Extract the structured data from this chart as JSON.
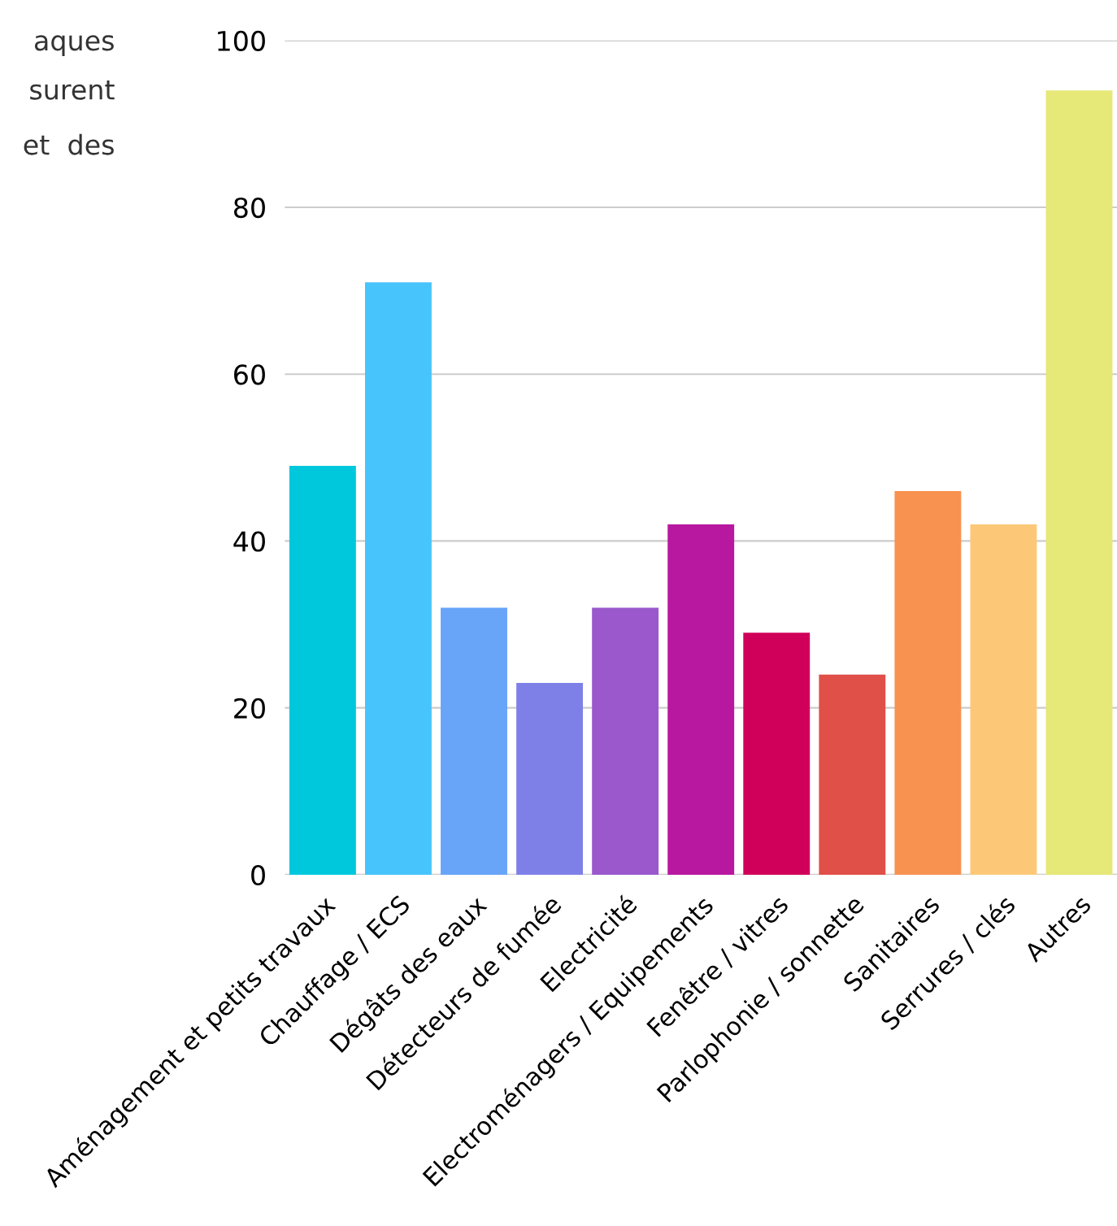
{
  "chart_data": {
    "type": "bar",
    "categories": [
      "Aménagement et petits travaux",
      "Chauffage / ECS",
      "Dégâts des eaux",
      "Détecteurs de fumée",
      "Electricité",
      "Electroménagers / Equipements",
      "Fenêtre / vitres",
      "Parlophonie / sonnette",
      "Sanitaires",
      "Serrures / clés",
      "Autres"
    ],
    "values": [
      49,
      71,
      32,
      23,
      32,
      42,
      29,
      24,
      46,
      42,
      94
    ],
    "colors": [
      "#00c8dc",
      "#48c4fc",
      "#68a4f8",
      "#7e80e8",
      "#9a58cc",
      "#b818a0",
      "#d0005a",
      "#e05048",
      "#f89250",
      "#fcc878",
      "#e6e878"
    ],
    "ylim": [
      0,
      100
    ],
    "yticks": [
      0,
      20,
      40,
      60,
      80,
      100
    ],
    "grid": "y",
    "annotations": [
      "aques",
      "surent",
      "et  des"
    ]
  }
}
